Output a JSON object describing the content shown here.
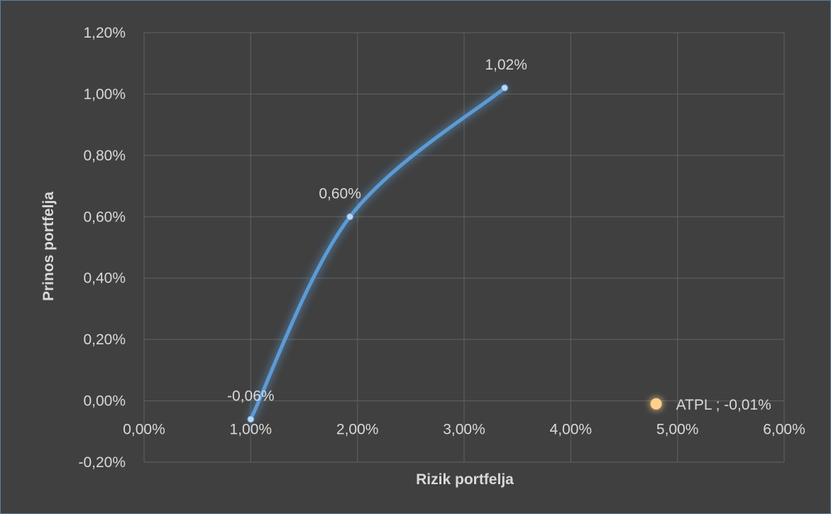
{
  "chart_data": {
    "type": "scatter",
    "xlabel": "Rizik portfelja",
    "ylabel": "Prinos portfelja",
    "xlim": [
      0,
      6
    ],
    "ylim": [
      -0.2,
      1.2
    ],
    "x_ticks": [
      0,
      1,
      2,
      3,
      4,
      5,
      6
    ],
    "y_ticks": [
      -0.2,
      0,
      0.2,
      0.4,
      0.6,
      0.8,
      1.0,
      1.2
    ],
    "x_tick_labels": [
      "0,00%",
      "1,00%",
      "2,00%",
      "3,00%",
      "4,00%",
      "5,00%",
      "6,00%"
    ],
    "y_tick_labels": [
      "-0,20%",
      "0,00%",
      "0,20%",
      "0,40%",
      "0,60%",
      "0,80%",
      "1,00%",
      "1,20%"
    ],
    "grid": true,
    "series": [
      {
        "color": "#5b9bd5",
        "smooth": true,
        "x": [
          1.0,
          1.93,
          3.38
        ],
        "y": [
          -0.06,
          0.6,
          1.02
        ],
        "labels": [
          "-0,06%",
          "0,60%",
          "1,02%"
        ]
      },
      {
        "color": "#ffd08a",
        "x": [
          4.8
        ],
        "y": [
          -0.01
        ],
        "labels": [
          "ATPL ; -0,01%"
        ]
      }
    ]
  }
}
